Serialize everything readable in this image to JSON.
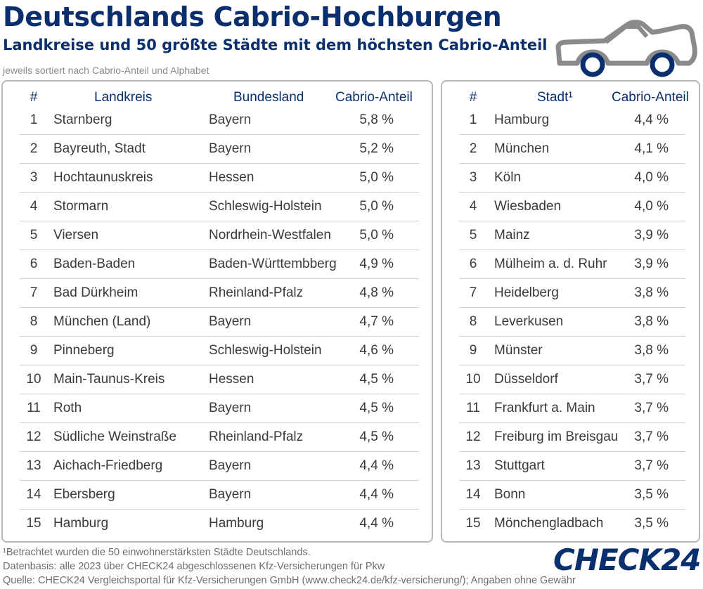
{
  "header": {
    "title": "Deutschlands Cabrio-Hochburgen",
    "subtitle": "Landkreise und 50 größte Städte mit dem höchsten Cabrio-Anteil",
    "sort_note": "jeweils sortiert nach Cabrio-Anteil und Alphabet"
  },
  "car_icon": "convertible-car-icon",
  "colors": {
    "brand_navy": "#0a2f6e",
    "car_gray": "#8a8a8a",
    "border_gray": "#b8b8b8",
    "row_divider": "#cfcfcf"
  },
  "left_table": {
    "columns": [
      "#",
      "Landkreis",
      "Bundesland",
      "Cabrio-Anteil"
    ],
    "rows": [
      [
        "1",
        "Starnberg",
        "Bayern",
        "5,8 %"
      ],
      [
        "2",
        "Bayreuth, Stadt",
        "Bayern",
        "5,2 %"
      ],
      [
        "3",
        "Hochtaunuskreis",
        "Hessen",
        "5,0 %"
      ],
      [
        "4",
        "Stormarn",
        "Schleswig-Holstein",
        "5,0 %"
      ],
      [
        "5",
        "Viersen",
        "Nordrhein-Westfalen",
        "5,0 %"
      ],
      [
        "6",
        "Baden-Baden",
        "Baden-Württembberg",
        "4,9 %"
      ],
      [
        "7",
        "Bad Dürkheim",
        "Rheinland-Pfalz",
        "4,8 %"
      ],
      [
        "8",
        "München (Land)",
        "Bayern",
        "4,7 %"
      ],
      [
        "9",
        "Pinneberg",
        "Schleswig-Holstein",
        "4,6 %"
      ],
      [
        "10",
        "Main-Taunus-Kreis",
        "Hessen",
        "4,5 %"
      ],
      [
        "11",
        "Roth",
        "Bayern",
        "4,5 %"
      ],
      [
        "12",
        "Südliche Weinstraße",
        "Rheinland-Pfalz",
        "4,5 %"
      ],
      [
        "13",
        "Aichach-Friedberg",
        "Bayern",
        "4,4 %"
      ],
      [
        "14",
        "Ebersberg",
        "Bayern",
        "4,4 %"
      ],
      [
        "15",
        "Hamburg",
        "Hamburg",
        "4,4 %"
      ]
    ]
  },
  "right_table": {
    "columns": [
      "#",
      "Stadt¹",
      "Cabrio-Anteil"
    ],
    "rows": [
      [
        "1",
        "Hamburg",
        "4,4 %"
      ],
      [
        "2",
        "München",
        "4,1 %"
      ],
      [
        "3",
        "Köln",
        "4,0 %"
      ],
      [
        "4",
        "Wiesbaden",
        "4,0 %"
      ],
      [
        "5",
        "Mainz",
        "3,9 %"
      ],
      [
        "6",
        "Mülheim a. d. Ruhr",
        "3,9 %"
      ],
      [
        "7",
        "Heidelberg",
        "3,8 %"
      ],
      [
        "8",
        "Leverkusen",
        "3,8 %"
      ],
      [
        "9",
        "Münster",
        "3,8 %"
      ],
      [
        "10",
        "Düsseldorf",
        "3,7 %"
      ],
      [
        "11",
        "Frankfurt a. Main",
        "3,7 %"
      ],
      [
        "12",
        "Freiburg im Breisgau",
        "3,7 %"
      ],
      [
        "13",
        "Stuttgart",
        "3,7 %"
      ],
      [
        "14",
        "Bonn",
        "3,5 %"
      ],
      [
        "15",
        "Mönchengladbach",
        "3,5 %"
      ]
    ]
  },
  "footer": {
    "footnote": "¹Betrachtet wurden die 50 einwohnerstärksten Städte Deutschlands.",
    "data_basis": "Datenbasis: alle 2023 über CHECK24 abgeschlossenen Kfz-Versicherungen für Pkw",
    "source": "Quelle: CHECK24 Vergleichsportal für Kfz-Versicherungen GmbH (www.check24.de/kfz-versicherung/); Angaben ohne Gewähr",
    "logo": "CHECK24"
  },
  "chart_data": [
    {
      "type": "table",
      "title": "Deutschlands Cabrio-Hochburgen",
      "columns": [
        "#",
        "Landkreis",
        "Bundesland",
        "Cabrio-Anteil"
      ],
      "rank": [
        1,
        2,
        3,
        4,
        5,
        6,
        7,
        8,
        9,
        10,
        11,
        12,
        13,
        14,
        15
      ],
      "labels": [
        "Starnberg",
        "Bayreuth, Stadt",
        "Hochtaunuskreis",
        "Stormarn",
        "Viersen",
        "Baden-Baden",
        "Bad Dürkheim",
        "München (Land)",
        "Pinneberg",
        "Main-Taunus-Kreis",
        "Roth",
        "Südliche Weinstraße",
        "Aichach-Friedberg",
        "Ebersberg",
        "Hamburg"
      ],
      "values": [
        5.8,
        5.2,
        5.0,
        5.0,
        5.0,
        4.9,
        4.8,
        4.7,
        4.6,
        4.5,
        4.5,
        4.5,
        4.4,
        4.4,
        4.4
      ],
      "unit": "%"
    },
    {
      "type": "table",
      "title": "Deutschlands Cabrio-Hochburgen",
      "columns": [
        "#",
        "Stadt¹",
        "Cabrio-Anteil"
      ],
      "rank": [
        1,
        2,
        3,
        4,
        5,
        6,
        7,
        8,
        9,
        10,
        11,
        12,
        13,
        14,
        15
      ],
      "labels": [
        "Hamburg",
        "München",
        "Köln",
        "Wiesbaden",
        "Mainz",
        "Mülheim a. d. Ruhr",
        "Heidelberg",
        "Leverkusen",
        "Münster",
        "Düsseldorf",
        "Frankfurt a. Main",
        "Freiburg im Breisgau",
        "Stuttgart",
        "Bonn",
        "Mönchengladbach"
      ],
      "values": [
        4.4,
        4.1,
        4.0,
        4.0,
        3.9,
        3.9,
        3.8,
        3.8,
        3.8,
        3.7,
        3.7,
        3.7,
        3.7,
        3.5,
        3.5
      ],
      "unit": "%"
    }
  ]
}
